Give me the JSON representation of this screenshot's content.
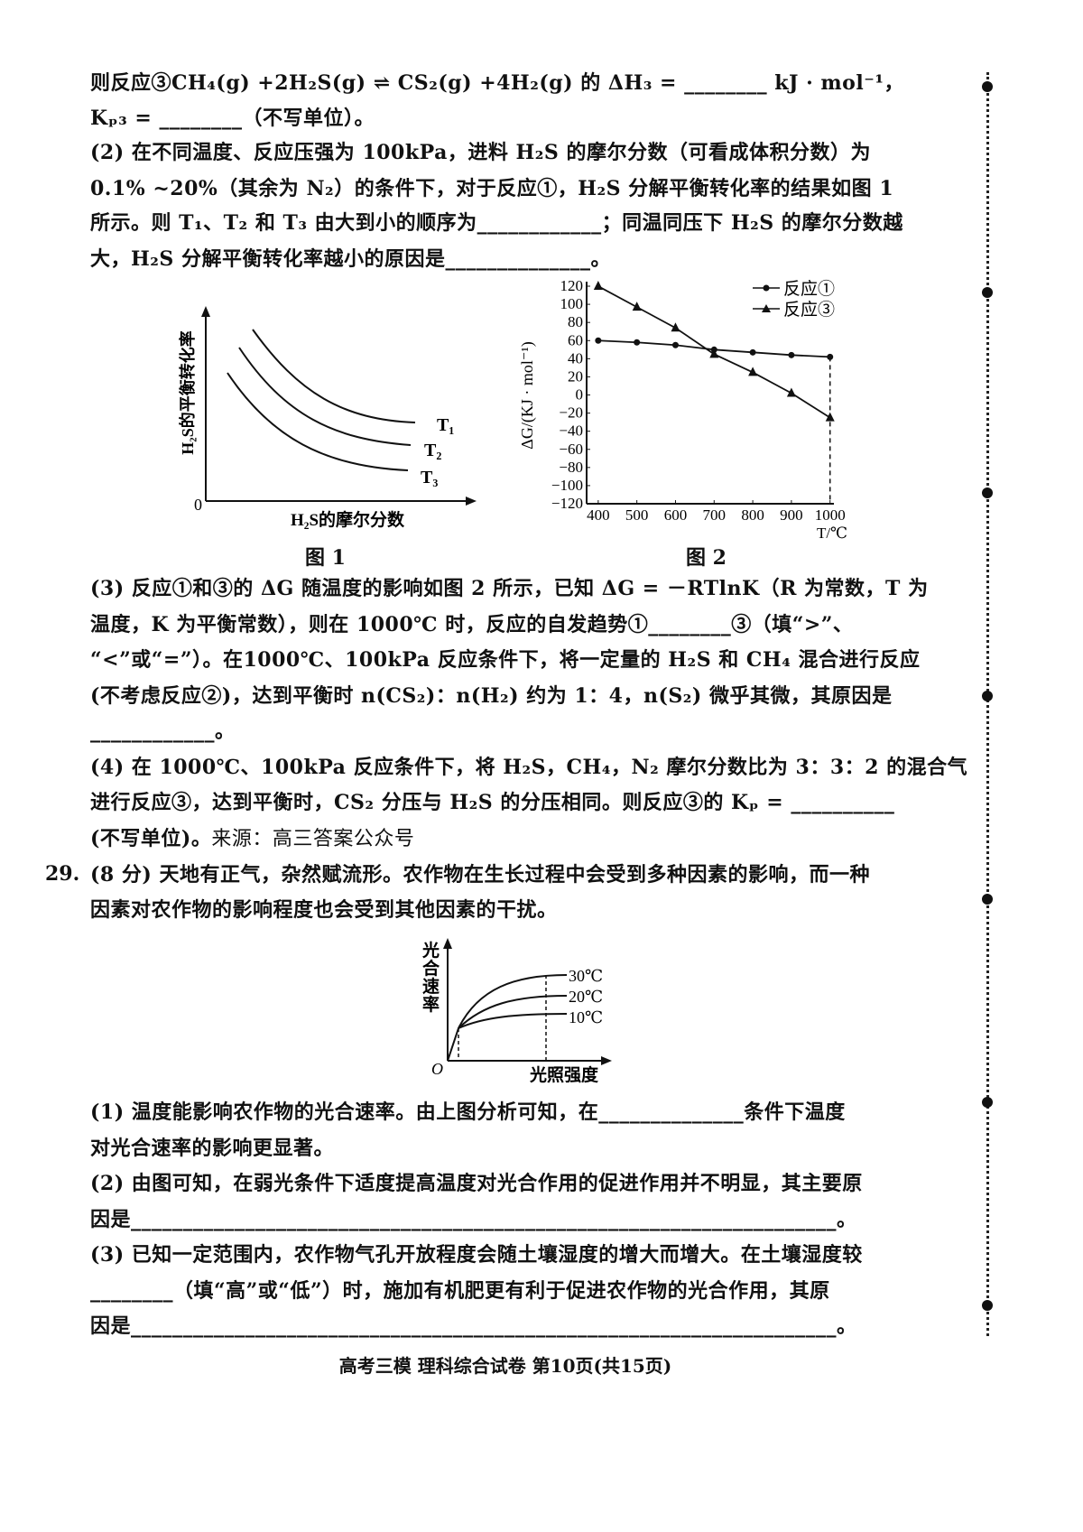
{
  "question28": {
    "lines": [
      "则反应③CH₄(g)  +2H₂S(g) ⇌ CS₂(g)  +4H₂(g) 的 ΔH₃ = ________ kJ · mol⁻¹，",
      "Kₚ₃ = ________（不写单位）。",
      "(2) 在不同温度、反应压强为 100kPa，进料 H₂S 的摩尔分数（可看成体积分数）为",
      "0.1% ~20%（其余为 N₂）的条件下，对于反应①，H₂S 分解平衡转化率的结果如图 1",
      "所示。则 T₁、T₂ 和 T₃ 由大到小的顺序为____________；同温同压下 H₂S 的摩尔分数越",
      "大，H₂S 分解平衡转化率越小的原因是______________。"
    ],
    "lines_after_figures": [
      "(3) 反应①和③的 ΔG 随温度的影响如图 2 所示，已知 ΔG = －RTlnK（R 为常数，T 为",
      "温度，K 为平衡常数），则在 1000℃ 时，反应的自发趋势①________③（填“>”、",
      "“<”或“=”）。在1000℃、100kPa 反应条件下，将一定量的 H₂S 和 CH₄ 混合进行反应",
      "(不考虑反应②)，达到平衡时 n(CS₂)：n(H₂) 约为 1：4，n(S₂) 微乎其微，其原因是",
      "____________。",
      "(4) 在 1000℃、100kPa 反应条件下，将 H₂S，CH₄，N₂ 摩尔分数比为 3：3：2 的混合气",
      "进行反应③，达到平衡时，CS₂ 分压与 H₂S 的分压相同。则反应③的 Kₚ = __________"
    ],
    "last_line": "(不写单位)。",
    "source_note": "来源：高三答案公众号"
  },
  "figure1": {
    "caption": "图 1",
    "ylabel": "H₂S的平衡转化率",
    "xlabel": "H₂S的摩尔分数",
    "origin": "0",
    "curve_labels": [
      "T₁",
      "T₂",
      "T₃"
    ]
  },
  "chart_data": {
    "type": "line",
    "caption": "图 2",
    "ylabel": "ΔG/(KJ · mol⁻¹)",
    "xlabel": "T/℃",
    "x": [
      400,
      500,
      600,
      700,
      800,
      900,
      1000
    ],
    "xlim": [
      370,
      1010
    ],
    "ylim": [
      -120,
      125
    ],
    "yticks": [
      120,
      100,
      80,
      60,
      40,
      20,
      0,
      -20,
      -40,
      -60,
      -80,
      -100,
      -120
    ],
    "xticks": [
      400,
      500,
      600,
      700,
      800,
      900,
      1000
    ],
    "grid": false,
    "legend_placement": "top-right",
    "series": [
      {
        "name": "反应①",
        "marker": "circle",
        "values": [
          60,
          58,
          55,
          50,
          47,
          44,
          42
        ]
      },
      {
        "name": "反应③",
        "marker": "triangle",
        "values": [
          120,
          97,
          74,
          45,
          25,
          2,
          -25
        ]
      }
    ],
    "annotation": "dashed vertical line at 1000"
  },
  "question29": {
    "number": "29.",
    "lines": [
      "(8 分) 天地有正气，杂然赋流形。农作物在生长过程中会受到多种因素的影响，而一种",
      "因素对农作物的影响程度也会受到其他因素的干扰。"
    ],
    "figure": {
      "ylabel": "光合速率",
      "xlabel": "光照强度",
      "origin": "O",
      "curve_labels": [
        "30℃",
        "20℃",
        "10℃"
      ]
    },
    "lines_after_figure": [
      "(1) 温度能影响农作物的光合速率。由上图分析可知，在______________条件下温度",
      "对光合速率的影响更显著。",
      "(2) 由图可知，在弱光条件下适度提高温度对光合作用的促进作用并不明显，其主要原",
      "因是____________________________________________________________________。",
      "(3) 已知一定范围内，农作物气孔开放程度会随土壤湿度的增大而增大。在土壤湿度较",
      "________（填“高”或“低”）时，施加有机肥更有利于促进农作物的光合作用，其原",
      "因是____________________________________________________________________。"
    ]
  },
  "footer": "高考三模  理科综合试卷  第10页(共15页)"
}
